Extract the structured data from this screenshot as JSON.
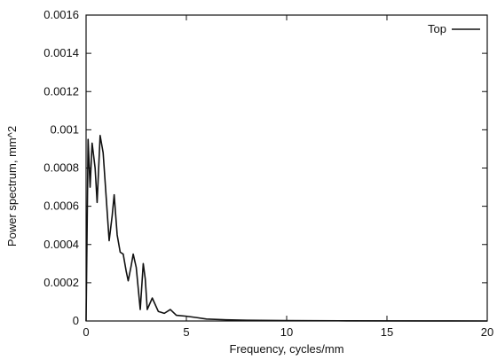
{
  "chart_data": {
    "type": "line",
    "title": "",
    "xlabel": "Frequency, cycles/mm",
    "ylabel": "Power spectrum, mm^2",
    "xlim": [
      0,
      20
    ],
    "ylim": [
      0,
      0.0016
    ],
    "grid": false,
    "legend_position": "top-right",
    "x_ticks": [
      "0",
      "5",
      "10",
      "15",
      "20"
    ],
    "y_ticks": [
      "0",
      "0.0002",
      "0.0004",
      "0.0006",
      "0.0008",
      "0.001",
      "0.0012",
      "0.0014",
      "0.0016"
    ],
    "series": [
      {
        "name": "Top",
        "color": "#111111",
        "points": [
          [
            0.0,
            0.0
          ],
          [
            0.1,
            0.00095
          ],
          [
            0.2,
            0.0007
          ],
          [
            0.3,
            0.00093
          ],
          [
            0.45,
            0.0008
          ],
          [
            0.55,
            0.00062
          ],
          [
            0.7,
            0.00097
          ],
          [
            0.85,
            0.00088
          ],
          [
            1.0,
            0.00065
          ],
          [
            1.15,
            0.00042
          ],
          [
            1.3,
            0.00055
          ],
          [
            1.4,
            0.00066
          ],
          [
            1.55,
            0.00045
          ],
          [
            1.7,
            0.00036
          ],
          [
            1.85,
            0.00035
          ],
          [
            2.0,
            0.00026
          ],
          [
            2.1,
            0.00021
          ],
          [
            2.25,
            0.00029
          ],
          [
            2.35,
            0.00035
          ],
          [
            2.5,
            0.00028
          ],
          [
            2.6,
            0.00017
          ],
          [
            2.7,
            6e-05
          ],
          [
            2.85,
            0.0003
          ],
          [
            2.95,
            0.00022
          ],
          [
            3.05,
            6e-05
          ],
          [
            3.3,
            0.00012
          ],
          [
            3.6,
            5e-05
          ],
          [
            3.9,
            4e-05
          ],
          [
            4.2,
            6e-05
          ],
          [
            4.5,
            3e-05
          ],
          [
            5.0,
            2.5e-05
          ],
          [
            5.5,
            1.8e-05
          ],
          [
            6.0,
            1e-05
          ],
          [
            7.0,
            6e-06
          ],
          [
            8.0,
            4e-06
          ],
          [
            10.0,
            2e-06
          ],
          [
            13.0,
            1e-06
          ],
          [
            17.0,
            5e-07
          ],
          [
            20.0,
            0.0
          ]
        ]
      }
    ]
  }
}
